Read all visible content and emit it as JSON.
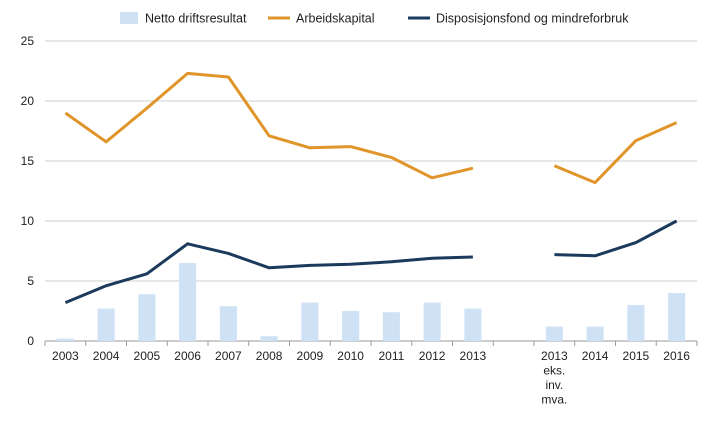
{
  "chart_data": {
    "type": "bar+line",
    "categories": [
      "2003",
      "2004",
      "2005",
      "2006",
      "2007",
      "2008",
      "2009",
      "2010",
      "2011",
      "2012",
      "2013",
      "",
      "2013 eks. inv. mva.",
      "2014",
      "2015",
      "2016"
    ],
    "category_lines": [
      [
        "2003"
      ],
      [
        "2004"
      ],
      [
        "2005"
      ],
      [
        "2006"
      ],
      [
        "2007"
      ],
      [
        "2008"
      ],
      [
        "2009"
      ],
      [
        "2010"
      ],
      [
        "2011"
      ],
      [
        "2012"
      ],
      [
        "2013"
      ],
      [],
      [
        "2013",
        "eks.",
        "inv.",
        "mva."
      ],
      [
        "2014"
      ],
      [
        "2015"
      ],
      [
        "2016"
      ]
    ],
    "ylim": [
      0,
      25
    ],
    "yticks": [
      "0",
      "5",
      "10",
      "15",
      "20",
      "25"
    ],
    "grid": true,
    "legend_position": "top",
    "series": [
      {
        "name": "Netto driftsresultat",
        "kind": "bar",
        "color": "#cfe2f5",
        "values": [
          0.2,
          2.7,
          3.9,
          6.5,
          2.9,
          0.4,
          3.2,
          2.5,
          2.4,
          3.2,
          2.7,
          null,
          1.2,
          1.2,
          3.0,
          4.0
        ]
      },
      {
        "name": "Arbeidskapital",
        "kind": "line",
        "color": "#e0952a",
        "values": [
          19.0,
          16.6,
          19.4,
          22.3,
          22.0,
          17.1,
          16.1,
          16.2,
          15.3,
          13.6,
          14.4,
          null,
          14.6,
          13.2,
          16.7,
          18.2
        ]
      },
      {
        "name": "Disposisjonsfond og mindreforbruk",
        "kind": "line",
        "color": "#1b3a5c",
        "values": [
          3.2,
          4.6,
          5.6,
          8.1,
          7.3,
          6.1,
          6.3,
          6.4,
          6.6,
          6.9,
          7.0,
          null,
          7.2,
          7.1,
          8.2,
          10.0
        ]
      }
    ]
  }
}
